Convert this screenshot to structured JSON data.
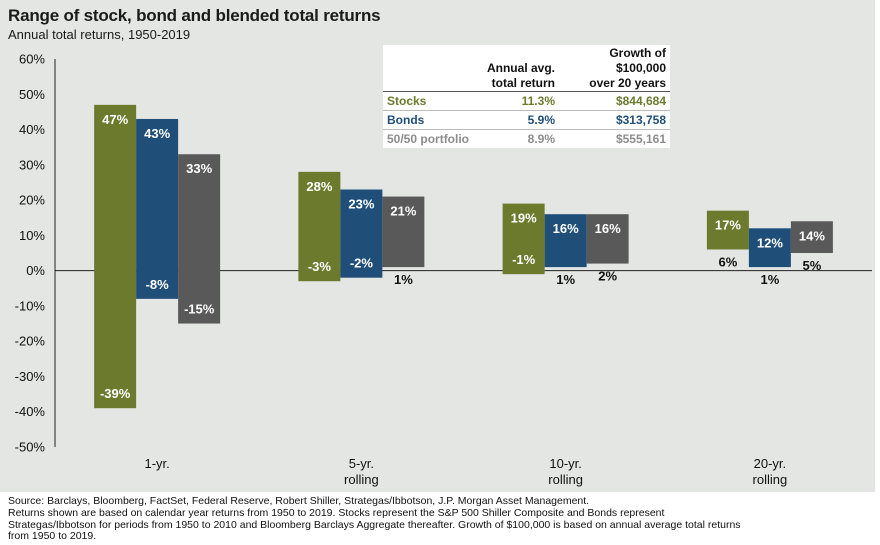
{
  "title": "Range of stock, bond and blended total returns",
  "subtitle": "Annual total returns, 1950-2019",
  "table": {
    "headers": [
      [
        "",
        ""
      ],
      [
        "Annual avg.",
        "total return"
      ],
      [
        "Growth of $100,000",
        "over 20 years"
      ]
    ],
    "rows": [
      {
        "name": "Stocks",
        "avg": "11.3%",
        "growth": "$844,684",
        "color": "#6b7a2c"
      },
      {
        "name": "Bonds",
        "avg": "5.9%",
        "growth": "$313,758",
        "color": "#1f4e79"
      },
      {
        "name": "50/50 portfolio",
        "avg": "8.9%",
        "growth": "$555,161",
        "color": "#8c8c8c"
      }
    ]
  },
  "footnote": {
    "source": "Source: Barclays, Bloomberg, FactSet, Federal Reserve, Robert Shiller, Strategas/Ibbotson, J.P. Morgan Asset Management.",
    "note": "Returns shown are based on calendar year returns from 1950 to 2019. Stocks represent the S&P 500 Shiller Composite and Bonds represent Strategas/Ibbotson for periods from 1950 to 2010 and Bloomberg Barclays Aggregate thereafter. Growth of $100,000 is based on annual average total returns from 1950 to 2019."
  },
  "chart_data": {
    "type": "bar",
    "subtype": "floating range",
    "title": "Range of stock, bond and blended total returns",
    "subtitle": "Annual total returns, 1950-2019",
    "categories": [
      [
        "1-yr."
      ],
      [
        "5-yr.",
        "rolling"
      ],
      [
        "10-yr.",
        "rolling"
      ],
      [
        "20-yr.",
        "rolling"
      ]
    ],
    "ylim": [
      -50,
      60
    ],
    "yticks": [
      -50,
      -40,
      -30,
      -20,
      -10,
      0,
      10,
      20,
      30,
      40,
      50,
      60
    ],
    "tick_format": "percent",
    "grid": false,
    "series": [
      {
        "key": "stocks",
        "color": "#6b7a2c",
        "max": [
          47,
          28,
          19,
          17
        ],
        "min": [
          -39,
          -3,
          -1,
          6
        ],
        "max_labels": [
          "47%",
          "28%",
          "19%",
          "17%"
        ],
        "min_labels": [
          "-39%",
          "-3%",
          "-1%",
          "6%"
        ]
      },
      {
        "key": "bonds",
        "color": "#1f4e79",
        "max": [
          43,
          23,
          16,
          12
        ],
        "min": [
          -8,
          -2,
          1,
          1
        ],
        "max_labels": [
          "43%",
          "23%",
          "16%",
          "12%"
        ],
        "min_labels": [
          "-8%",
          "-2%",
          "1%",
          "1%"
        ]
      },
      {
        "key": "portfolio",
        "color": "#595959",
        "max": [
          33,
          21,
          16,
          14
        ],
        "min": [
          -15,
          1,
          2,
          5
        ],
        "max_labels": [
          "33%",
          "21%",
          "16%",
          "14%"
        ],
        "min_labels": [
          "-15%",
          "1%",
          "2%",
          "5%"
        ]
      }
    ]
  }
}
